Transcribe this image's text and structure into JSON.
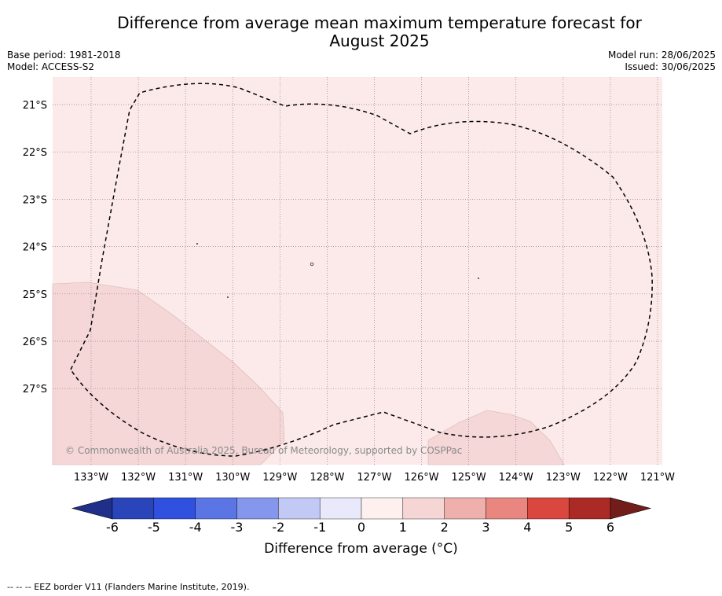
{
  "title_line1": "Difference from average mean maximum temperature forecast for",
  "title_line2": "August 2025",
  "base_period": "Base period: 1981-2018",
  "model": "Model: ACCESS-S2",
  "model_run": "Model run: 28/06/2025",
  "issued": "Issued: 30/06/2025",
  "copyright": "© Commonwealth of Australia 2025, Bureau of Meteorology, supported by COSPPac",
  "footnote": "--  --  -- EEZ border V11 (Flanders Marine Institute, 2019).",
  "map": {
    "lat_labels": [
      "21°S",
      "22°S",
      "23°S",
      "24°S",
      "25°S",
      "26°S",
      "27°S"
    ],
    "lon_labels": [
      "133°W",
      "132°W",
      "131°W",
      "130°W",
      "129°W",
      "128°W",
      "127°W",
      "126°W",
      "125°W",
      "124°W",
      "123°W",
      "122°W",
      "121°W"
    ],
    "background_color": "#fbeae9",
    "warmer_color": "#f4d7d6"
  },
  "colorbar": {
    "label": "Difference from average (°C)",
    "ticks": [
      "-6",
      "-5",
      "-4",
      "-3",
      "-2",
      "-1",
      "0",
      "1",
      "2",
      "3",
      "4",
      "5",
      "6"
    ],
    "colors": [
      "#1f2f8a",
      "#2a44b9",
      "#3050e0",
      "#5b75e5",
      "#8497ec",
      "#c3c9f5",
      "#e8eafb",
      "#fdf0ef",
      "#f5d6d5",
      "#efb0ac",
      "#e8867f",
      "#d9473e",
      "#ab2a25",
      "#731d1a"
    ]
  }
}
